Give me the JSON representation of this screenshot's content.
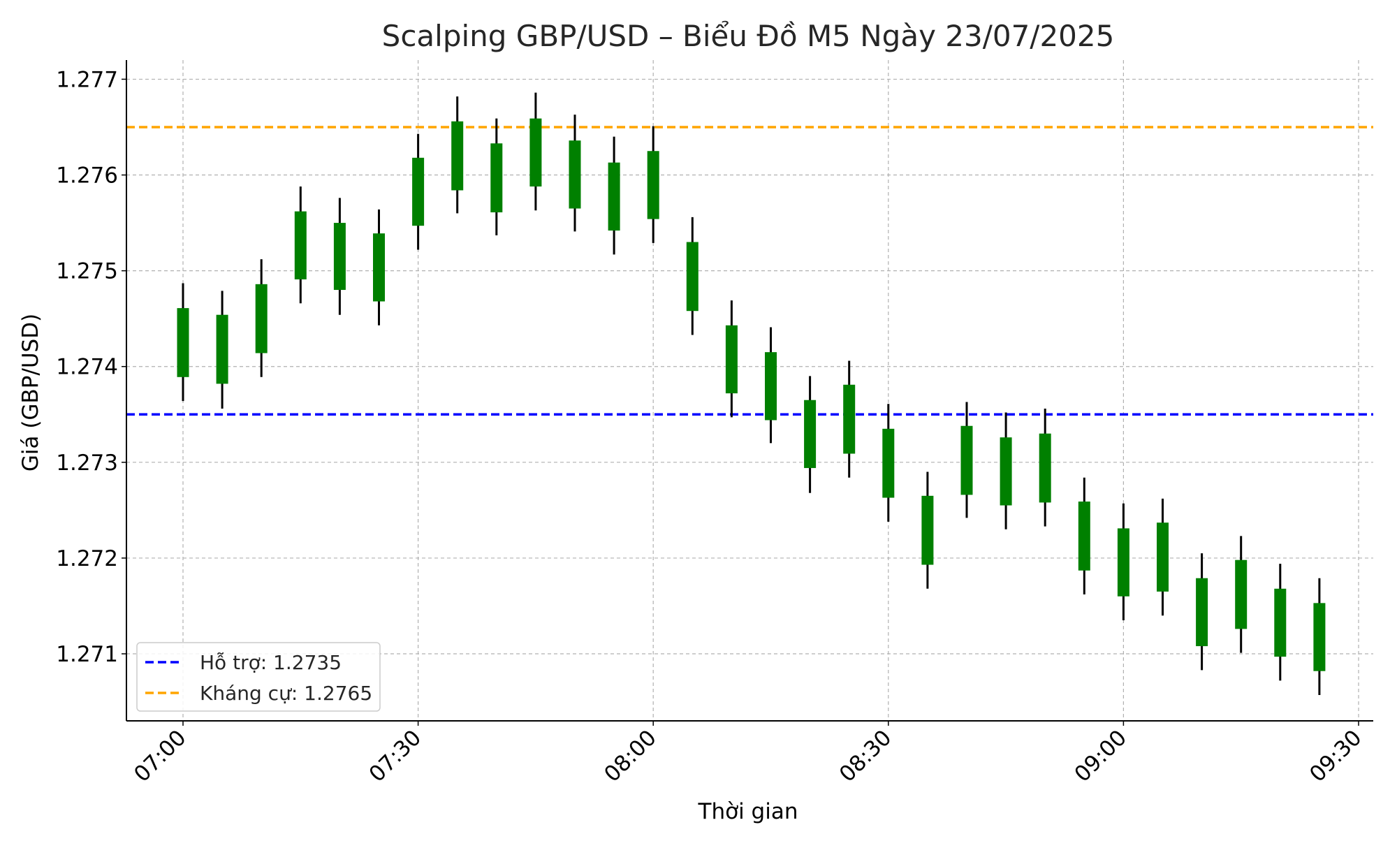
{
  "chart_data": {
    "type": "candlestick",
    "title": "Scalping GBP/USD – Biểu Đồ M5 Ngày 23/07/2025",
    "xlabel": "Thời gian",
    "ylabel": "Giá (GBP/USD)",
    "ylim": [
      1.2703,
      1.2772
    ],
    "y_ticks": [
      1.271,
      1.272,
      1.273,
      1.274,
      1.275,
      1.276,
      1.277
    ],
    "y_tick_labels": [
      "1.271",
      "1.272",
      "1.273",
      "1.274",
      "1.275",
      "1.276",
      "1.277"
    ],
    "x_ticks": [
      "07:00",
      "07:30",
      "08:00",
      "08:30",
      "09:00",
      "09:30"
    ],
    "grid": true,
    "legend_position": "bottom-left",
    "candle_color": "#008000",
    "wick_color": "#000000",
    "candles": [
      {
        "time": "07:00",
        "open": 1.27389,
        "high": 1.27487,
        "low": 1.27364,
        "close": 1.27461
      },
      {
        "time": "07:05",
        "open": 1.27382,
        "high": 1.27479,
        "low": 1.27356,
        "close": 1.27454
      },
      {
        "time": "07:10",
        "open": 1.27414,
        "high": 1.27512,
        "low": 1.27389,
        "close": 1.27486
      },
      {
        "time": "07:15",
        "open": 1.27491,
        "high": 1.27588,
        "low": 1.27466,
        "close": 1.27562
      },
      {
        "time": "07:20",
        "open": 1.2748,
        "high": 1.27576,
        "low": 1.27454,
        "close": 1.2755
      },
      {
        "time": "07:25",
        "open": 1.27468,
        "high": 1.27564,
        "low": 1.27443,
        "close": 1.27539
      },
      {
        "time": "07:30",
        "open": 1.27547,
        "high": 1.27643,
        "low": 1.27522,
        "close": 1.27618
      },
      {
        "time": "07:35",
        "open": 1.27584,
        "high": 1.27682,
        "low": 1.2756,
        "close": 1.27656
      },
      {
        "time": "07:40",
        "open": 1.27561,
        "high": 1.27659,
        "low": 1.27537,
        "close": 1.27633
      },
      {
        "time": "07:45",
        "open": 1.27588,
        "high": 1.27686,
        "low": 1.27563,
        "close": 1.27659
      },
      {
        "time": "07:50",
        "open": 1.27565,
        "high": 1.27663,
        "low": 1.27541,
        "close": 1.27636
      },
      {
        "time": "07:55",
        "open": 1.27542,
        "high": 1.2764,
        "low": 1.27517,
        "close": 1.27613
      },
      {
        "time": "08:00",
        "open": 1.27554,
        "high": 1.27651,
        "low": 1.27529,
        "close": 1.27625
      },
      {
        "time": "08:05",
        "open": 1.27458,
        "high": 1.27556,
        "low": 1.27433,
        "close": 1.2753
      },
      {
        "time": "08:10",
        "open": 1.27372,
        "high": 1.27469,
        "low": 1.27347,
        "close": 1.27443
      },
      {
        "time": "08:15",
        "open": 1.27344,
        "high": 1.27441,
        "low": 1.2732,
        "close": 1.27415
      },
      {
        "time": "08:20",
        "open": 1.27294,
        "high": 1.2739,
        "low": 1.27268,
        "close": 1.27365
      },
      {
        "time": "08:25",
        "open": 1.27309,
        "high": 1.27406,
        "low": 1.27284,
        "close": 1.27381
      },
      {
        "time": "08:30",
        "open": 1.27263,
        "high": 1.27361,
        "low": 1.27238,
        "close": 1.27335
      },
      {
        "time": "08:35",
        "open": 1.27193,
        "high": 1.2729,
        "low": 1.27168,
        "close": 1.27265
      },
      {
        "time": "08:40",
        "open": 1.27266,
        "high": 1.27363,
        "low": 1.27242,
        "close": 1.27338
      },
      {
        "time": "08:45",
        "open": 1.27255,
        "high": 1.27352,
        "low": 1.2723,
        "close": 1.27326
      },
      {
        "time": "08:50",
        "open": 1.27258,
        "high": 1.27356,
        "low": 1.27233,
        "close": 1.2733
      },
      {
        "time": "08:55",
        "open": 1.27187,
        "high": 1.27284,
        "low": 1.27162,
        "close": 1.27259
      },
      {
        "time": "09:00",
        "open": 1.2716,
        "high": 1.27257,
        "low": 1.27135,
        "close": 1.27231
      },
      {
        "time": "09:05",
        "open": 1.27165,
        "high": 1.27262,
        "low": 1.2714,
        "close": 1.27237
      },
      {
        "time": "09:10",
        "open": 1.27108,
        "high": 1.27205,
        "low": 1.27083,
        "close": 1.27179
      },
      {
        "time": "09:15",
        "open": 1.27126,
        "high": 1.27223,
        "low": 1.27101,
        "close": 1.27198
      },
      {
        "time": "09:20",
        "open": 1.27097,
        "high": 1.27194,
        "low": 1.27072,
        "close": 1.27168
      },
      {
        "time": "09:25",
        "open": 1.27082,
        "high": 1.27179,
        "low": 1.27057,
        "close": 1.27153
      }
    ],
    "lines": [
      {
        "name": "Hỗ trợ: 1.2735",
        "value": 1.2735,
        "color": "#0000ff",
        "style": "dashed"
      },
      {
        "name": "Kháng cự: 1.2765",
        "value": 1.2765,
        "color": "#ffa500",
        "style": "dashed"
      }
    ]
  }
}
